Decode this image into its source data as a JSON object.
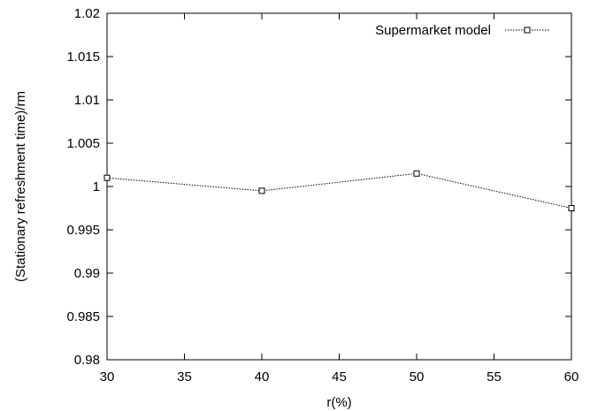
{
  "chart_data": {
    "type": "line",
    "xlabel": "r(%)",
    "ylabel": "(Stationary refreshment time)/rm",
    "xlim": [
      30,
      60
    ],
    "ylim": [
      0.98,
      1.02
    ],
    "xticks": [
      "30",
      "35",
      "40",
      "45",
      "50",
      "55",
      "60"
    ],
    "yticks": [
      "0.98",
      "0.985",
      "0.99",
      "0.995",
      "1",
      "1.005",
      "1.01",
      "1.015",
      "1.02"
    ],
    "legend_position": "top-right",
    "grid": false,
    "series": [
      {
        "name": "Supermarket model",
        "marker": "open-square",
        "line_style": "dotted",
        "color": "#000000",
        "x": [
          30,
          40,
          50,
          60
        ],
        "y": [
          1.001,
          0.9995,
          1.0015,
          0.9975
        ]
      }
    ]
  }
}
